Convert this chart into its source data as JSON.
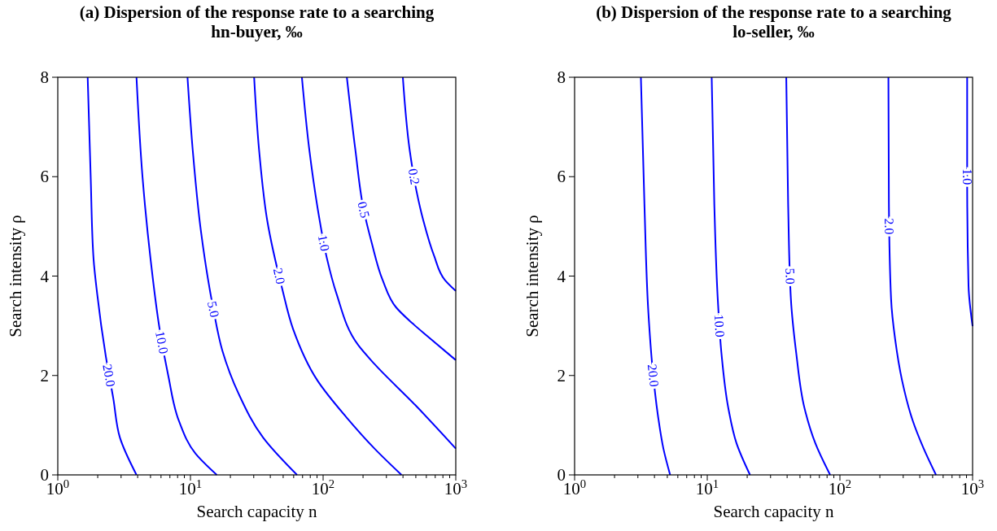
{
  "chart_data": [
    {
      "type": "line",
      "title": "(a) Dispersion of the response rate to a searching hn-buyer, ‰",
      "xlabel": "Search capacity n",
      "ylabel": "Search intensity ρ",
      "log": "x",
      "xlim": [
        1,
        1000
      ],
      "ylim": [
        0,
        8
      ],
      "grid": false,
      "legend": false,
      "marker": "none",
      "line_style": "solid",
      "xticks": [
        {
          "value": 1,
          "label": "10$^{0}$"
        },
        {
          "value": 2,
          "label": null
        },
        {
          "value": 3,
          "label": null
        },
        {
          "value": 4,
          "label": null
        },
        {
          "value": 5,
          "label": null
        },
        {
          "value": 6,
          "label": null
        },
        {
          "value": 7,
          "label": null
        },
        {
          "value": 8,
          "label": null
        },
        {
          "value": 9,
          "label": null
        },
        {
          "value": 10,
          "label": "10$^{1}$"
        },
        {
          "value": 20,
          "label": null
        },
        {
          "value": 30,
          "label": null
        },
        {
          "value": 40,
          "label": null
        },
        {
          "value": 50,
          "label": null
        },
        {
          "value": 60,
          "label": null
        },
        {
          "value": 70,
          "label": null
        },
        {
          "value": 80,
          "label": null
        },
        {
          "value": 90,
          "label": null
        },
        {
          "value": 100,
          "label": "10$^{2}$"
        },
        {
          "value": 200,
          "label": null
        },
        {
          "value": 300,
          "label": null
        },
        {
          "value": 400,
          "label": null
        },
        {
          "value": 500,
          "label": null
        },
        {
          "value": 600,
          "label": null
        },
        {
          "value": 700,
          "label": null
        },
        {
          "value": 800,
          "label": null
        },
        {
          "value": 900,
          "label": null
        },
        {
          "value": 1000,
          "label": "10$^{3}$"
        }
      ],
      "yticks": [
        0,
        2,
        4,
        6,
        8
      ],
      "series": [
        {
          "name": "20.0",
          "color": "#0000ff",
          "x": [
            1.68,
            1.77,
            1.86,
            1.98,
            2.3,
            2.62,
            2.94,
            3.92
          ],
          "values": [
            8,
            6,
            4.35,
            3.65,
            2.39,
            1.54,
            0.75,
            0
          ]
        },
        {
          "name": "10.0",
          "color": "#0000ff",
          "x": [
            3.92,
            4.35,
            5.0,
            5.9,
            6.8,
            8.2,
            10.9,
            15.8
          ],
          "values": [
            8,
            6,
            4.35,
            2.88,
            2.0,
            1.08,
            0.43,
            0
          ]
        },
        {
          "name": "5.0",
          "color": "#0000ff",
          "x": [
            9.5,
            10.4,
            12.0,
            14.8,
            17.4,
            23.1,
            35.3,
            63.6
          ],
          "values": [
            8,
            6.54,
            4.9,
            3.37,
            2.5,
            1.63,
            0.75,
            0
          ]
        },
        {
          "name": "2.0",
          "color": "#0000ff",
          "x": [
            30.2,
            32.9,
            37.9,
            49.1,
            59.3,
            90.6,
            152,
            244,
            390
          ],
          "values": [
            8,
            6.54,
            5.12,
            3.75,
            2.94,
            1.9,
            1.14,
            0.53,
            0
          ]
        },
        {
          "name": "1.0",
          "color": "#0000ff",
          "x": [
            69.2,
            78.7,
            92.7,
            107,
            126,
            184,
            244,
            493,
            1000
          ],
          "values": [
            8,
            6.54,
            5.23,
            4.35,
            3.65,
            2.61,
            2.23,
            1.41,
            0.53
          ]
        },
        {
          "name": "0.5",
          "color": "#0000ff",
          "x": [
            151,
            175,
            202,
            232,
            281,
            355,
            471,
            625,
            1000
          ],
          "values": [
            8,
            6.54,
            5.34,
            4.68,
            3.92,
            3.37,
            3.05,
            2.77,
            2.31
          ]
        },
        {
          "name": "0.2",
          "color": "#0000ff",
          "x": [
            399,
            449,
            505,
            569,
            686,
            828,
            1000
          ],
          "values": [
            8,
            6.54,
            5.72,
            5.12,
            4.41,
            3.92,
            3.7
          ]
        }
      ]
    },
    {
      "type": "line",
      "title": "(b) Dispersion of the response rate to a searching lo-seller, ‰",
      "xlabel": "Search capacity n",
      "ylabel": "Search intensity ρ",
      "log": "x",
      "xlim": [
        1,
        1000
      ],
      "ylim": [
        0,
        8
      ],
      "grid": false,
      "legend": false,
      "marker": "none",
      "line_style": "solid",
      "xticks": [
        {
          "value": 1,
          "label": "10$^{0}$"
        },
        {
          "value": 2,
          "label": null
        },
        {
          "value": 3,
          "label": null
        },
        {
          "value": 4,
          "label": null
        },
        {
          "value": 5,
          "label": null
        },
        {
          "value": 6,
          "label": null
        },
        {
          "value": 7,
          "label": null
        },
        {
          "value": 8,
          "label": null
        },
        {
          "value": 9,
          "label": null
        },
        {
          "value": 10,
          "label": "10$^{1}$"
        },
        {
          "value": 20,
          "label": null
        },
        {
          "value": 30,
          "label": null
        },
        {
          "value": 40,
          "label": null
        },
        {
          "value": 50,
          "label": null
        },
        {
          "value": 60,
          "label": null
        },
        {
          "value": 70,
          "label": null
        },
        {
          "value": 80,
          "label": null
        },
        {
          "value": 90,
          "label": null
        },
        {
          "value": 100,
          "label": "10$^{2}$"
        },
        {
          "value": 200,
          "label": null
        },
        {
          "value": 300,
          "label": null
        },
        {
          "value": 400,
          "label": null
        },
        {
          "value": 500,
          "label": null
        },
        {
          "value": 600,
          "label": null
        },
        {
          "value": 700,
          "label": null
        },
        {
          "value": 800,
          "label": null
        },
        {
          "value": 900,
          "label": null
        },
        {
          "value": 1000,
          "label": "10$^{3}$"
        }
      ],
      "yticks": [
        0,
        2,
        4,
        6,
        8
      ],
      "series": [
        {
          "name": "20.0",
          "color": "#0000ff",
          "x": [
            3.16,
            3.36,
            3.6,
            3.86,
            4.25,
            4.67,
            5.25
          ],
          "values": [
            8,
            5.45,
            3.26,
            2.17,
            1.19,
            0.53,
            0
          ]
        },
        {
          "name": "10.0",
          "color": "#0000ff",
          "x": [
            10.8,
            11.3,
            12.0,
            12.8,
            14.4,
            16.6,
            21.0
          ],
          "values": [
            8,
            5.45,
            3.54,
            2.44,
            1.35,
            0.64,
            0
          ]
        },
        {
          "name": "5.0",
          "color": "#0000ff",
          "x": [
            39.4,
            40.7,
            42.7,
            46.9,
            54,
            65.2,
            84.4
          ],
          "values": [
            8,
            5.45,
            3.54,
            2.44,
            1.35,
            0.64,
            0
          ]
        },
        {
          "name": "2.0",
          "color": "#0000ff",
          "x": [
            232,
            234,
            243,
            261,
            294,
            355,
            428,
            530
          ],
          "values": [
            8,
            5.45,
            3.54,
            2.72,
            1.9,
            1.08,
            0.53,
            0
          ]
        },
        {
          "name": "1.0",
          "color": "#0000ff",
          "x": [
            910,
            910,
            932,
            1000
          ],
          "values": [
            8,
            5.99,
            3.81,
            2.99
          ]
        }
      ]
    }
  ]
}
